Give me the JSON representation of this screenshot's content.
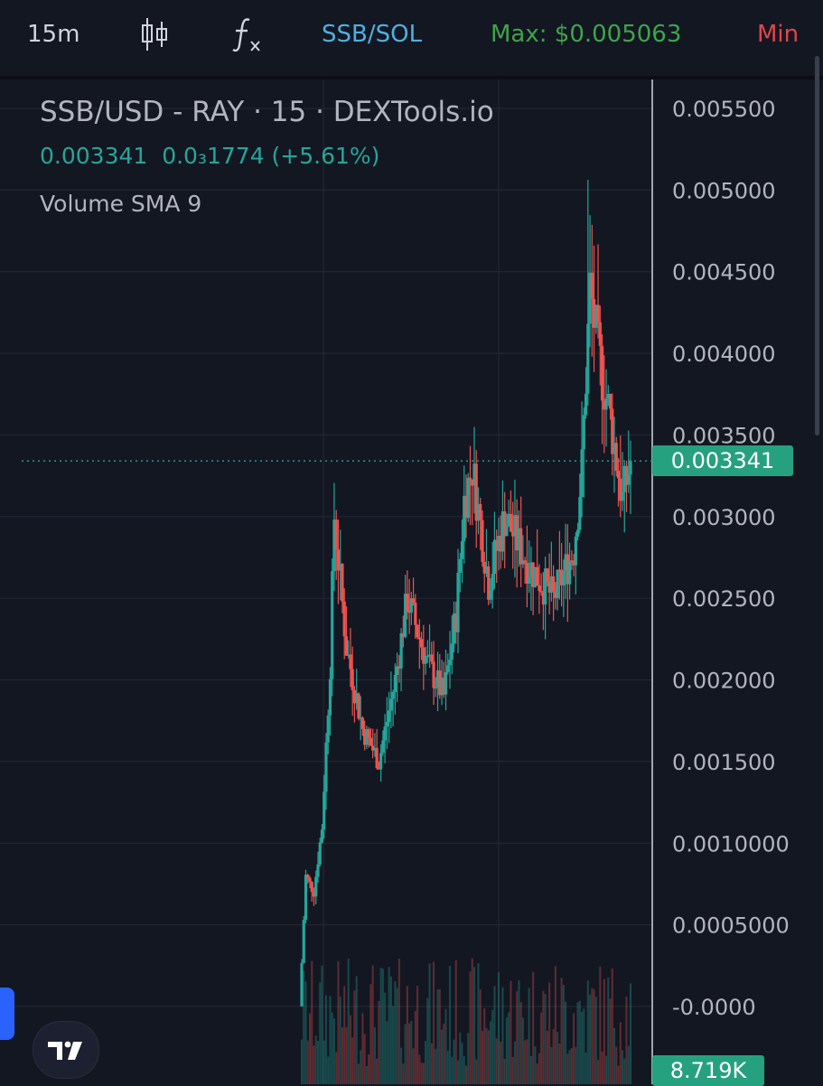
{
  "toolbar": {
    "interval": "15m",
    "pair": "SSB/SOL",
    "max_label": "Max: $0.005063",
    "min_label": "Min",
    "icons": [
      "candles-icon",
      "function-icon"
    ]
  },
  "legend": {
    "title": "SSB/USD - RAY · 15 · DEXTools.io",
    "price": "0.003341",
    "change": "0.0₃1774 (+5.61%)",
    "indicator": "Volume SMA 9"
  },
  "price_axis": {
    "ticks": [
      "0.005500",
      "0.005000",
      "0.004500",
      "0.004000",
      "0.003500",
      "0.003000",
      "0.002500",
      "0.002000",
      "0.001500",
      "0.0010000",
      "0.0005000",
      "-0.0000"
    ],
    "current_price_label": "0.003341",
    "volume_label": "8.719K"
  },
  "colors": {
    "background": "#131722",
    "up": "#26a69a",
    "down": "#ef5350",
    "grid": "#232734",
    "axis_text": "#b2b5be",
    "price_tag": "#26a17f",
    "pair_text": "#4fb0e0",
    "max_text": "#3fa44a",
    "min_text": "#e0454b"
  },
  "chart_data": {
    "type": "candlestick",
    "title": "SSB/USD - RAY · 15 · DEXTools.io",
    "ylim": [
      0,
      0.0055
    ],
    "y_ticks": [
      0,
      0.0005,
      0.001,
      0.0015,
      0.002,
      0.0025,
      0.003,
      0.0035,
      0.004,
      0.0045,
      0.005,
      0.0055
    ],
    "last_price": 0.003341,
    "max_price": 0.005063,
    "grid": true,
    "segments": [
      {
        "start": 0.0,
        "end": 0.0008,
        "count": 3
      },
      {
        "start": 0.0008,
        "end": 0.0007,
        "count": 4
      },
      {
        "start": 0.0007,
        "end": 0.0011,
        "count": 4
      },
      {
        "start": 0.0011,
        "end": 0.0021,
        "count": 4
      },
      {
        "start": 0.0021,
        "end": 0.003,
        "count": 2
      },
      {
        "start": 0.003,
        "end": 0.0022,
        "count": 6
      },
      {
        "start": 0.0022,
        "end": 0.0017,
        "count": 8
      },
      {
        "start": 0.0017,
        "end": 0.0015,
        "count": 8
      },
      {
        "start": 0.0015,
        "end": 0.002,
        "count": 8
      },
      {
        "start": 0.002,
        "end": 0.0025,
        "count": 6
      },
      {
        "start": 0.0025,
        "end": 0.0021,
        "count": 10
      },
      {
        "start": 0.0021,
        "end": 0.0019,
        "count": 8
      },
      {
        "start": 0.0019,
        "end": 0.0024,
        "count": 6
      },
      {
        "start": 0.0024,
        "end": 0.0031,
        "count": 4
      },
      {
        "start": 0.0031,
        "end": 0.0033,
        "count": 4
      },
      {
        "start": 0.0033,
        "end": 0.0026,
        "count": 8
      },
      {
        "start": 0.0026,
        "end": 0.003,
        "count": 8
      },
      {
        "start": 0.003,
        "end": 0.0027,
        "count": 12
      },
      {
        "start": 0.0027,
        "end": 0.0025,
        "count": 12
      },
      {
        "start": 0.0025,
        "end": 0.0028,
        "count": 10
      },
      {
        "start": 0.0028,
        "end": 0.0033,
        "count": 4
      },
      {
        "start": 0.0033,
        "end": 0.0044,
        "count": 4
      },
      {
        "start": 0.0044,
        "end": 0.004,
        "count": 4
      },
      {
        "start": 0.004,
        "end": 0.0036,
        "count": 6
      },
      {
        "start": 0.0036,
        "end": 0.0031,
        "count": 6
      },
      {
        "start": 0.0031,
        "end": 0.003341,
        "count": 4
      }
    ],
    "volume": {
      "label": "Volume SMA 9",
      "last": "8.719K"
    }
  }
}
